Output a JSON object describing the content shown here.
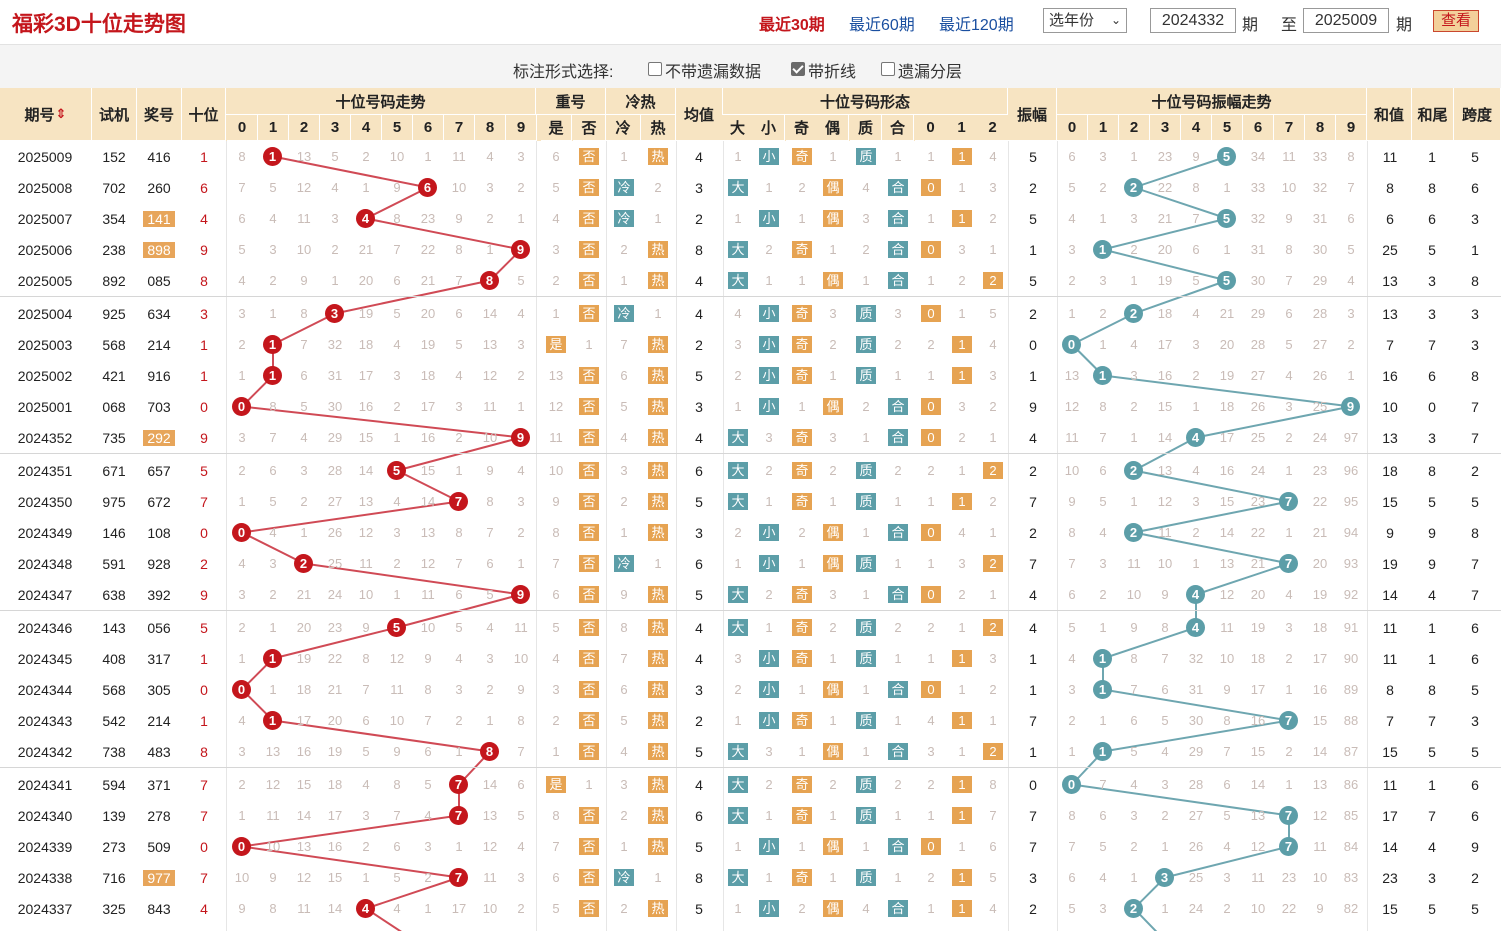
{
  "title": "福彩3D十位走势图",
  "links": [
    {
      "label": "最近30期",
      "active": true
    },
    {
      "label": "最近60期",
      "active": false
    },
    {
      "label": "最近120期",
      "active": false
    }
  ],
  "year_select": "选年份",
  "from_issue": "2024332",
  "to_issue": "2025009",
  "qi_label": "期",
  "zhi_label": "至",
  "query_label": "查看",
  "options_label": "标注形式选择:",
  "options": [
    {
      "label": "不带遗漏数据",
      "checked": false
    },
    {
      "label": "带折线",
      "checked": true
    },
    {
      "label": "遗漏分层",
      "checked": false
    }
  ],
  "header": {
    "issue": "期号",
    "sort_icon": "sort-arrows-icon",
    "trial": "试机",
    "prize": "奖号",
    "tens": "十位",
    "trend": "十位号码走势",
    "repeat": "重号",
    "repeat_sub": [
      "是",
      "否"
    ],
    "coldhot": "冷热",
    "coldhot_sub": [
      "冷",
      "热"
    ],
    "avg": "均值",
    "form": "十位号码形态",
    "form_sub": [
      "大",
      "小",
      "奇",
      "偶",
      "质",
      "合",
      "0",
      "1",
      "2"
    ],
    "amp": "振幅",
    "amp_trend": "十位号码振幅走势",
    "sum": "和值",
    "sum_tail": "和尾",
    "span": "跨度",
    "digits": [
      "0",
      "1",
      "2",
      "3",
      "4",
      "5",
      "6",
      "7",
      "8",
      "9"
    ]
  },
  "colors": {
    "accent": "#c4161c",
    "header_bg": "#f7e4c2",
    "tag_orange": "#e6a352",
    "tag_teal": "#5c9ea8",
    "link": "#1a4fa0"
  },
  "rows": [
    {
      "issue": "2025009",
      "trial": "152",
      "prize": "416",
      "hl": false,
      "tens": 1,
      "miss": [
        8,
        null,
        13,
        5,
        2,
        10,
        1,
        11,
        4,
        3
      ],
      "repeat": [
        "6",
        "否"
      ],
      "coldhot": [
        "1",
        "热"
      ],
      "avg": "4",
      "form": [
        "1",
        "小",
        "奇",
        "1",
        "质",
        "1",
        "1",
        "1",
        "4"
      ],
      "amp": 5,
      "amp_miss": [
        6,
        3,
        1,
        23,
        9,
        null,
        34,
        11,
        33,
        8
      ],
      "sum": "11",
      "tail": "1",
      "span": "5"
    },
    {
      "issue": "2025008",
      "trial": "702",
      "prize": "260",
      "hl": false,
      "tens": 6,
      "miss": [
        7,
        5,
        12,
        4,
        1,
        9,
        null,
        10,
        3,
        2
      ],
      "repeat": [
        "5",
        "否"
      ],
      "coldhot": [
        "冷",
        "2"
      ],
      "avg": "3",
      "form": [
        "大",
        "1",
        "2",
        "偶",
        "4",
        "合",
        "0",
        "1",
        "3"
      ],
      "amp": 2,
      "amp_miss": [
        5,
        2,
        null,
        22,
        8,
        1,
        33,
        10,
        32,
        7
      ],
      "sum": "8",
      "tail": "8",
      "span": "6"
    },
    {
      "issue": "2025007",
      "trial": "354",
      "prize": "141",
      "hl": true,
      "tens": 4,
      "miss": [
        6,
        4,
        11,
        3,
        null,
        8,
        23,
        9,
        2,
        1
      ],
      "repeat": [
        "4",
        "否"
      ],
      "coldhot": [
        "冷",
        "1"
      ],
      "avg": "2",
      "form": [
        "1",
        "小",
        "1",
        "偶",
        "3",
        "合",
        "1",
        "1",
        "2"
      ],
      "amp": 5,
      "amp_miss": [
        4,
        1,
        3,
        21,
        7,
        null,
        32,
        9,
        31,
        6
      ],
      "sum": "6",
      "tail": "6",
      "span": "3"
    },
    {
      "issue": "2025006",
      "trial": "238",
      "prize": "898",
      "hl": true,
      "tens": 9,
      "miss": [
        5,
        3,
        10,
        2,
        21,
        7,
        22,
        8,
        1,
        null
      ],
      "repeat": [
        "3",
        "否"
      ],
      "coldhot": [
        "2",
        "热"
      ],
      "avg": "8",
      "form": [
        "大",
        "2",
        "奇",
        "1",
        "2",
        "合",
        "0",
        "3",
        "1"
      ],
      "amp": 1,
      "amp_miss": [
        3,
        null,
        2,
        20,
        6,
        1,
        31,
        8,
        30,
        5
      ],
      "sum": "25",
      "tail": "5",
      "span": "1"
    },
    {
      "issue": "2025005",
      "trial": "892",
      "prize": "085",
      "hl": false,
      "tens": 8,
      "miss": [
        4,
        2,
        9,
        1,
        20,
        6,
        21,
        7,
        null,
        5
      ],
      "repeat": [
        "2",
        "否"
      ],
      "coldhot": [
        "1",
        "热"
      ],
      "avg": "4",
      "form": [
        "大",
        "1",
        "1",
        "偶",
        "1",
        "合",
        "1",
        "2",
        "2"
      ],
      "amp": 5,
      "amp_miss": [
        2,
        3,
        1,
        19,
        5,
        null,
        30,
        7,
        29,
        4
      ],
      "sum": "13",
      "tail": "3",
      "span": "8"
    },
    {
      "issue": "2025004",
      "trial": "925",
      "prize": "634",
      "hl": false,
      "tens": 3,
      "miss": [
        3,
        1,
        8,
        null,
        19,
        5,
        20,
        6,
        14,
        4
      ],
      "repeat": [
        "1",
        "否"
      ],
      "coldhot": [
        "冷",
        "1"
      ],
      "avg": "4",
      "form": [
        "4",
        "小",
        "奇",
        "3",
        "质",
        "3",
        "0",
        "1",
        "5"
      ],
      "amp": 2,
      "amp_miss": [
        1,
        2,
        null,
        18,
        4,
        21,
        29,
        6,
        28,
        3
      ],
      "sum": "13",
      "tail": "3",
      "span": "3"
    },
    {
      "issue": "2025003",
      "trial": "568",
      "prize": "214",
      "hl": false,
      "tens": 1,
      "miss": [
        2,
        null,
        7,
        32,
        18,
        4,
        19,
        5,
        13,
        3
      ],
      "repeat": [
        "是",
        "1"
      ],
      "coldhot": [
        "7",
        "热"
      ],
      "avg": "2",
      "form": [
        "3",
        "小",
        "奇",
        "2",
        "质",
        "2",
        "2",
        "1",
        "4"
      ],
      "amp": 0,
      "amp_miss": [
        null,
        1,
        4,
        17,
        3,
        20,
        28,
        5,
        27,
        2
      ],
      "sum": "7",
      "tail": "7",
      "span": "3"
    },
    {
      "issue": "2025002",
      "trial": "421",
      "prize": "916",
      "hl": false,
      "tens": 1,
      "miss": [
        1,
        null,
        6,
        31,
        17,
        3,
        18,
        4,
        12,
        2
      ],
      "repeat": [
        "13",
        "否"
      ],
      "coldhot": [
        "6",
        "热"
      ],
      "avg": "5",
      "form": [
        "2",
        "小",
        "奇",
        "1",
        "质",
        "1",
        "1",
        "1",
        "3"
      ],
      "amp": 1,
      "amp_miss": [
        13,
        null,
        3,
        16,
        2,
        19,
        27,
        4,
        26,
        1
      ],
      "sum": "16",
      "tail": "6",
      "span": "8"
    },
    {
      "issue": "2025001",
      "trial": "068",
      "prize": "703",
      "hl": false,
      "tens": 0,
      "miss": [
        null,
        8,
        5,
        30,
        16,
        2,
        17,
        3,
        11,
        1
      ],
      "repeat": [
        "12",
        "否"
      ],
      "coldhot": [
        "5",
        "热"
      ],
      "avg": "3",
      "form": [
        "1",
        "小",
        "1",
        "偶",
        "2",
        "合",
        "0",
        "3",
        "2"
      ],
      "amp": 9,
      "amp_miss": [
        12,
        8,
        2,
        15,
        1,
        18,
        26,
        3,
        25,
        null
      ],
      "sum": "10",
      "tail": "0",
      "span": "7"
    },
    {
      "issue": "2024352",
      "trial": "735",
      "prize": "292",
      "hl": true,
      "tens": 9,
      "miss": [
        3,
        7,
        4,
        29,
        15,
        1,
        16,
        2,
        10,
        null
      ],
      "repeat": [
        "11",
        "否"
      ],
      "coldhot": [
        "4",
        "热"
      ],
      "avg": "4",
      "form": [
        "大",
        "3",
        "奇",
        "3",
        "1",
        "合",
        "0",
        "2",
        "1"
      ],
      "amp": 4,
      "amp_miss": [
        11,
        7,
        1,
        14,
        null,
        17,
        25,
        2,
        24,
        97
      ],
      "sum": "13",
      "tail": "3",
      "span": "7"
    },
    {
      "issue": "2024351",
      "trial": "671",
      "prize": "657",
      "hl": false,
      "tens": 5,
      "miss": [
        2,
        6,
        3,
        28,
        14,
        null,
        15,
        1,
        9,
        4
      ],
      "repeat": [
        "10",
        "否"
      ],
      "coldhot": [
        "3",
        "热"
      ],
      "avg": "6",
      "form": [
        "大",
        "2",
        "奇",
        "2",
        "质",
        "2",
        "2",
        "1",
        "2"
      ],
      "amp": 2,
      "amp_miss": [
        10,
        6,
        null,
        13,
        4,
        16,
        24,
        1,
        23,
        96
      ],
      "sum": "18",
      "tail": "8",
      "span": "2"
    },
    {
      "issue": "2024350",
      "trial": "975",
      "prize": "672",
      "hl": false,
      "tens": 7,
      "miss": [
        1,
        5,
        2,
        27,
        13,
        4,
        14,
        null,
        8,
        3
      ],
      "repeat": [
        "9",
        "否"
      ],
      "coldhot": [
        "2",
        "热"
      ],
      "avg": "5",
      "form": [
        "大",
        "1",
        "奇",
        "1",
        "质",
        "1",
        "1",
        "1",
        "2"
      ],
      "amp": 7,
      "amp_miss": [
        9,
        5,
        1,
        12,
        3,
        15,
        23,
        null,
        22,
        95
      ],
      "sum": "15",
      "tail": "5",
      "span": "5"
    },
    {
      "issue": "2024349",
      "trial": "146",
      "prize": "108",
      "hl": false,
      "tens": 0,
      "miss": [
        null,
        4,
        1,
        26,
        12,
        3,
        13,
        8,
        7,
        2
      ],
      "repeat": [
        "8",
        "否"
      ],
      "coldhot": [
        "1",
        "热"
      ],
      "avg": "3",
      "form": [
        "2",
        "小",
        "2",
        "偶",
        "1",
        "合",
        "0",
        "4",
        "1"
      ],
      "amp": 2,
      "amp_miss": [
        8,
        4,
        null,
        11,
        2,
        14,
        22,
        1,
        21,
        94
      ],
      "sum": "9",
      "tail": "9",
      "span": "8"
    },
    {
      "issue": "2024348",
      "trial": "591",
      "prize": "928",
      "hl": false,
      "tens": 2,
      "miss": [
        4,
        3,
        null,
        25,
        11,
        2,
        12,
        7,
        6,
        1
      ],
      "repeat": [
        "7",
        "否"
      ],
      "coldhot": [
        "冷",
        "1"
      ],
      "avg": "6",
      "form": [
        "1",
        "小",
        "1",
        "偶",
        "质",
        "1",
        "1",
        "3",
        "2"
      ],
      "amp": 7,
      "amp_miss": [
        7,
        3,
        11,
        10,
        1,
        13,
        21,
        null,
        20,
        93
      ],
      "sum": "19",
      "tail": "9",
      "span": "7"
    },
    {
      "issue": "2024347",
      "trial": "638",
      "prize": "392",
      "hl": false,
      "tens": 9,
      "miss": [
        3,
        2,
        21,
        24,
        10,
        1,
        11,
        6,
        5,
        null
      ],
      "repeat": [
        "6",
        "否"
      ],
      "coldhot": [
        "9",
        "热"
      ],
      "avg": "5",
      "form": [
        "大",
        "2",
        "奇",
        "3",
        "1",
        "合",
        "0",
        "2",
        "1"
      ],
      "amp": 4,
      "amp_miss": [
        6,
        2,
        10,
        9,
        null,
        12,
        20,
        4,
        19,
        92
      ],
      "sum": "14",
      "tail": "4",
      "span": "7"
    },
    {
      "issue": "2024346",
      "trial": "143",
      "prize": "056",
      "hl": false,
      "tens": 5,
      "miss": [
        2,
        1,
        20,
        23,
        9,
        null,
        10,
        5,
        4,
        11
      ],
      "repeat": [
        "5",
        "否"
      ],
      "coldhot": [
        "8",
        "热"
      ],
      "avg": "4",
      "form": [
        "大",
        "1",
        "奇",
        "2",
        "质",
        "2",
        "2",
        "1",
        "2"
      ],
      "amp": 4,
      "amp_miss": [
        5,
        1,
        9,
        8,
        null,
        11,
        19,
        3,
        18,
        91
      ],
      "sum": "11",
      "tail": "1",
      "span": "6"
    },
    {
      "issue": "2024345",
      "trial": "408",
      "prize": "317",
      "hl": false,
      "tens": 1,
      "miss": [
        1,
        null,
        19,
        22,
        8,
        12,
        9,
        4,
        3,
        10
      ],
      "repeat": [
        "4",
        "否"
      ],
      "coldhot": [
        "7",
        "热"
      ],
      "avg": "4",
      "form": [
        "3",
        "小",
        "奇",
        "1",
        "质",
        "1",
        "1",
        "1",
        "3"
      ],
      "amp": 1,
      "amp_miss": [
        4,
        null,
        8,
        7,
        32,
        10,
        18,
        2,
        17,
        90
      ],
      "sum": "11",
      "tail": "1",
      "span": "6"
    },
    {
      "issue": "2024344",
      "trial": "568",
      "prize": "305",
      "hl": false,
      "tens": 0,
      "miss": [
        null,
        1,
        18,
        21,
        7,
        11,
        8,
        3,
        2,
        9
      ],
      "repeat": [
        "3",
        "否"
      ],
      "coldhot": [
        "6",
        "热"
      ],
      "avg": "3",
      "form": [
        "2",
        "小",
        "1",
        "偶",
        "1",
        "合",
        "0",
        "1",
        "2"
      ],
      "amp": 1,
      "amp_miss": [
        3,
        null,
        7,
        6,
        31,
        9,
        17,
        1,
        16,
        89
      ],
      "sum": "8",
      "tail": "8",
      "span": "5"
    },
    {
      "issue": "2024343",
      "trial": "542",
      "prize": "214",
      "hl": false,
      "tens": 1,
      "miss": [
        4,
        null,
        17,
        20,
        6,
        10,
        7,
        2,
        1,
        8
      ],
      "repeat": [
        "2",
        "否"
      ],
      "coldhot": [
        "5",
        "热"
      ],
      "avg": "2",
      "form": [
        "1",
        "小",
        "奇",
        "1",
        "质",
        "1",
        "4",
        "1",
        "1"
      ],
      "amp": 7,
      "amp_miss": [
        2,
        1,
        6,
        5,
        30,
        8,
        16,
        null,
        15,
        88
      ],
      "sum": "7",
      "tail": "7",
      "span": "3"
    },
    {
      "issue": "2024342",
      "trial": "738",
      "prize": "483",
      "hl": false,
      "tens": 8,
      "miss": [
        3,
        13,
        16,
        19,
        5,
        9,
        6,
        1,
        null,
        7
      ],
      "repeat": [
        "1",
        "否"
      ],
      "coldhot": [
        "4",
        "热"
      ],
      "avg": "5",
      "form": [
        "大",
        "3",
        "1",
        "偶",
        "1",
        "合",
        "3",
        "1",
        "2"
      ],
      "amp": 1,
      "amp_miss": [
        1,
        null,
        5,
        4,
        29,
        7,
        15,
        2,
        14,
        87
      ],
      "sum": "15",
      "tail": "5",
      "span": "5"
    },
    {
      "issue": "2024341",
      "trial": "594",
      "prize": "371",
      "hl": false,
      "tens": 7,
      "miss": [
        2,
        12,
        15,
        18,
        4,
        8,
        5,
        null,
        14,
        6
      ],
      "repeat": [
        "是",
        "1"
      ],
      "coldhot": [
        "3",
        "热"
      ],
      "avg": "4",
      "form": [
        "大",
        "2",
        "奇",
        "2",
        "质",
        "2",
        "2",
        "1",
        "8"
      ],
      "amp": 0,
      "amp_miss": [
        null,
        7,
        4,
        3,
        28,
        6,
        14,
        1,
        13,
        86
      ],
      "sum": "11",
      "tail": "1",
      "span": "6"
    },
    {
      "issue": "2024340",
      "trial": "139",
      "prize": "278",
      "hl": false,
      "tens": 7,
      "miss": [
        1,
        11,
        14,
        17,
        3,
        7,
        4,
        null,
        13,
        5
      ],
      "repeat": [
        "8",
        "否"
      ],
      "coldhot": [
        "2",
        "热"
      ],
      "avg": "6",
      "form": [
        "大",
        "1",
        "奇",
        "1",
        "质",
        "1",
        "1",
        "1",
        "7"
      ],
      "amp": 7,
      "amp_miss": [
        8,
        6,
        3,
        2,
        27,
        5,
        13,
        null,
        12,
        85
      ],
      "sum": "17",
      "tail": "7",
      "span": "6"
    },
    {
      "issue": "2024339",
      "trial": "273",
      "prize": "509",
      "hl": false,
      "tens": 0,
      "miss": [
        null,
        10,
        13,
        16,
        2,
        6,
        3,
        1,
        12,
        4
      ],
      "repeat": [
        "7",
        "否"
      ],
      "coldhot": [
        "1",
        "热"
      ],
      "avg": "5",
      "form": [
        "1",
        "小",
        "1",
        "偶",
        "1",
        "合",
        "0",
        "1",
        "6"
      ],
      "amp": 7,
      "amp_miss": [
        7,
        5,
        2,
        1,
        26,
        4,
        12,
        null,
        11,
        84
      ],
      "sum": "14",
      "tail": "4",
      "span": "9"
    },
    {
      "issue": "2024338",
      "trial": "716",
      "prize": "977",
      "hl": true,
      "tens": 7,
      "miss": [
        10,
        9,
        12,
        15,
        1,
        5,
        2,
        null,
        11,
        3
      ],
      "repeat": [
        "6",
        "否"
      ],
      "coldhot": [
        "冷",
        "1"
      ],
      "avg": "8",
      "form": [
        "大",
        "1",
        "奇",
        "1",
        "质",
        "1",
        "2",
        "1",
        "5"
      ],
      "amp": 3,
      "amp_miss": [
        6,
        4,
        1,
        null,
        25,
        3,
        11,
        23,
        10,
        83
      ],
      "sum": "23",
      "tail": "3",
      "span": "2"
    },
    {
      "issue": "2024337",
      "trial": "325",
      "prize": "843",
      "hl": false,
      "tens": 4,
      "miss": [
        9,
        8,
        11,
        14,
        null,
        4,
        1,
        17,
        10,
        2
      ],
      "repeat": [
        "5",
        "否"
      ],
      "coldhot": [
        "2",
        "热"
      ],
      "avg": "5",
      "form": [
        "1",
        "小",
        "2",
        "偶",
        "4",
        "合",
        "1",
        "1",
        "4"
      ],
      "amp": 2,
      "amp_miss": [
        5,
        3,
        null,
        1,
        24,
        2,
        10,
        22,
        9,
        82
      ],
      "sum": "15",
      "tail": "5",
      "span": "5"
    }
  ]
}
